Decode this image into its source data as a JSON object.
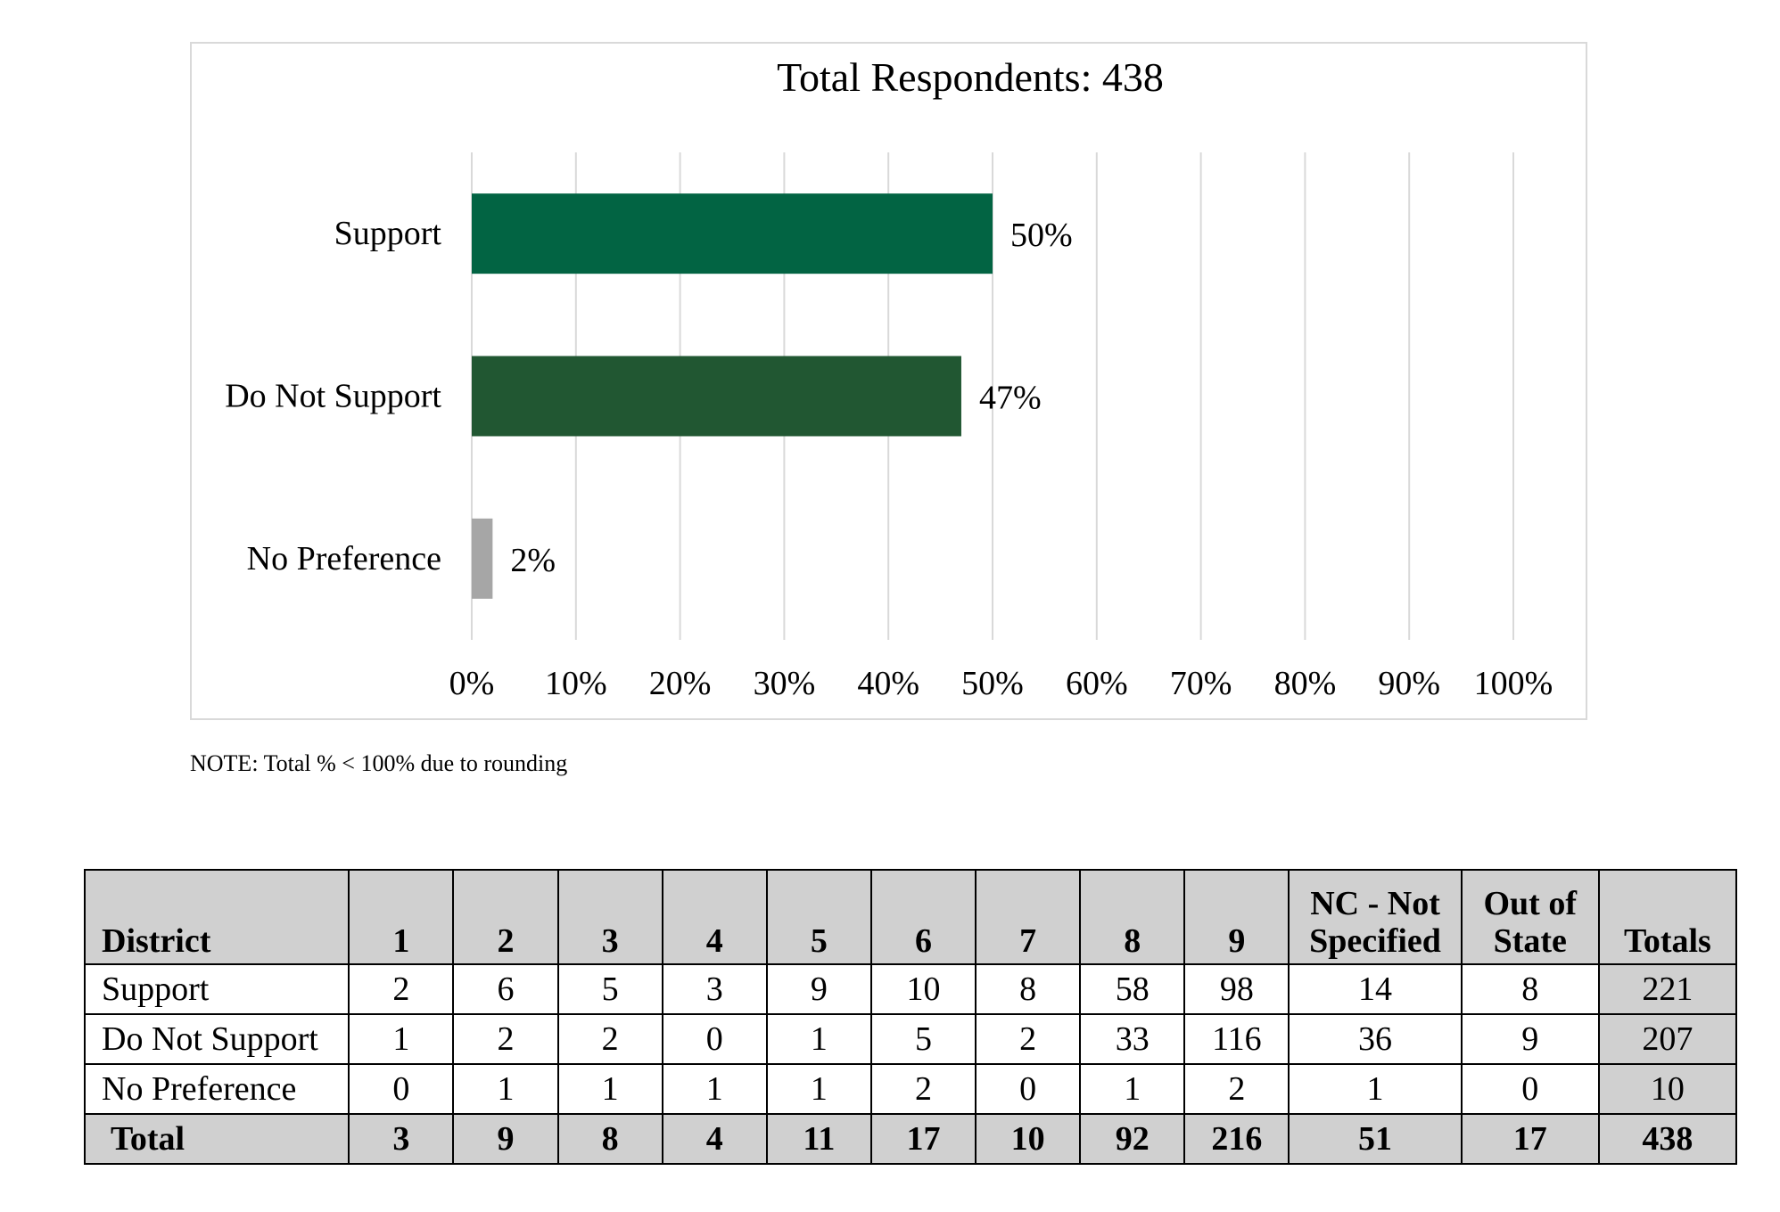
{
  "chart_data": {
    "type": "bar",
    "orientation": "horizontal",
    "title": "Total Respondents: 438",
    "categories": [
      "Support",
      "Do Not Support",
      "No Preference"
    ],
    "values": [
      50,
      47,
      2
    ],
    "value_labels": [
      "50%",
      "47%",
      "2%"
    ],
    "colors": [
      "#026443",
      "#215732",
      "#a6a6a6"
    ],
    "xlim": [
      0,
      100
    ],
    "xticks": [
      "0%",
      "10%",
      "20%",
      "30%",
      "40%",
      "50%",
      "60%",
      "70%",
      "80%",
      "90%",
      "100%"
    ],
    "grid": true,
    "xlabel": "",
    "ylabel": ""
  },
  "note": "NOTE: Total % < 100% due to rounding",
  "table": {
    "headers": [
      "District",
      "1",
      "2",
      "3",
      "4",
      "5",
      "6",
      "7",
      "8",
      "9",
      "NC - Not Specified",
      "Out of State",
      "Totals"
    ],
    "rows": [
      {
        "label": "Support",
        "cells": [
          "2",
          "6",
          "5",
          "3",
          "9",
          "10",
          "8",
          "58",
          "98",
          "14",
          "8"
        ],
        "total": "221"
      },
      {
        "label": "Do Not Support",
        "cells": [
          "1",
          "2",
          "2",
          "0",
          "1",
          "5",
          "2",
          "33",
          "116",
          "36",
          "9"
        ],
        "total": "207"
      },
      {
        "label": "No Preference",
        "cells": [
          "0",
          "1",
          "1",
          "1",
          "1",
          "2",
          "0",
          "1",
          "2",
          "1",
          "0"
        ],
        "total": "10"
      }
    ],
    "total_row": {
      "label": "Total",
      "cells": [
        "3",
        "9",
        "8",
        "4",
        "11",
        "17",
        "10",
        "92",
        "216",
        "51",
        "17"
      ],
      "total": "438"
    }
  }
}
